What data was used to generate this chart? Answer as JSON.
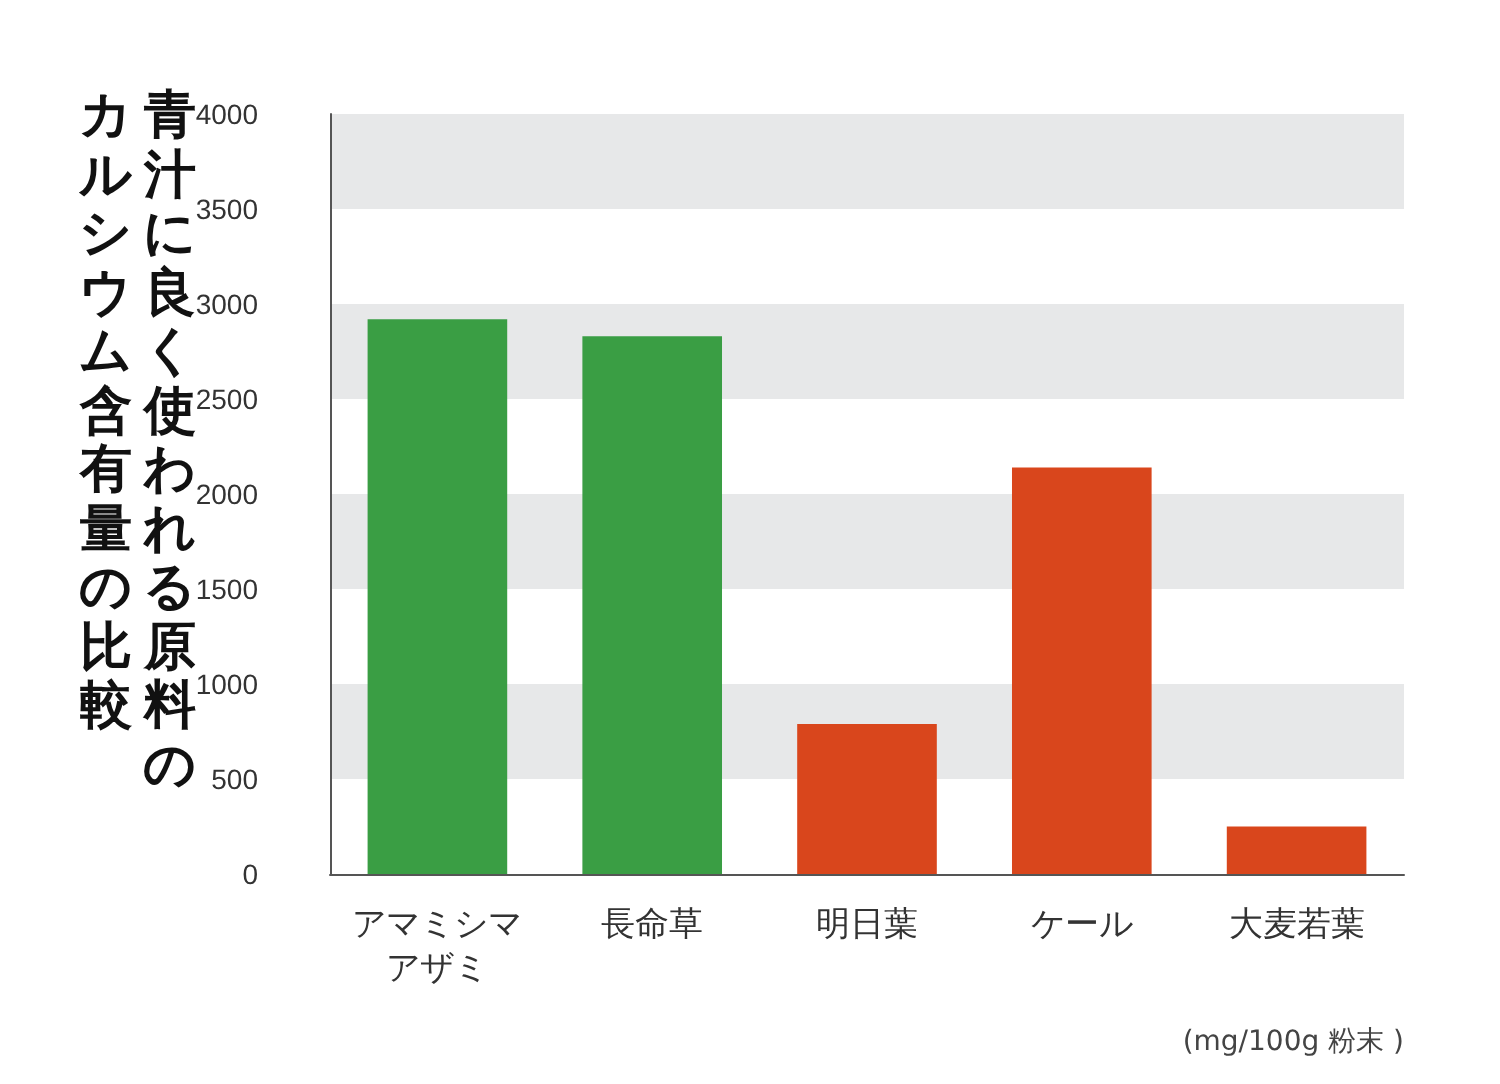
{
  "chart_data": {
    "type": "bar",
    "title": "青汁に良く使われる原料のカルシウム含有量の比較",
    "categories": [
      "アマミシマアザミ",
      "長命草",
      "明日葉",
      "ケール",
      "大麦若葉"
    ],
    "values": [
      2920,
      2830,
      790,
      2140,
      250
    ],
    "colors": [
      "#3a9e44",
      "#3a9e44",
      "#d9461c",
      "#d9461c",
      "#d9461c"
    ],
    "ylim": [
      0,
      4000
    ],
    "yticks": [
      0,
      500,
      1000,
      1500,
      2000,
      2500,
      3000,
      3500,
      4000
    ],
    "bands": [
      {
        "axis": "y",
        "from": 500,
        "to": 1000,
        "color": "#e7e8e9"
      },
      {
        "axis": "y",
        "from": 1500,
        "to": 2000,
        "color": "#e7e8e9"
      },
      {
        "axis": "y",
        "from": 2500,
        "to": 3000,
        "color": "#e7e8e9"
      },
      {
        "axis": "y",
        "from": 3500,
        "to": 4000,
        "color": "#e7e8e9"
      }
    ],
    "annotations": [
      "(mg/100g 粉末 )"
    ]
  }
}
